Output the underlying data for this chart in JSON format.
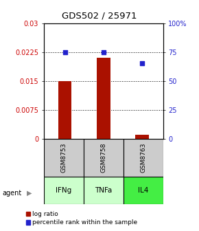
{
  "title": "GDS502 / 25971",
  "samples": [
    "GSM8753",
    "GSM8758",
    "GSM8763"
  ],
  "agents": [
    "IFNg",
    "TNFa",
    "IL4"
  ],
  "log_ratios": [
    0.015,
    0.021,
    0.001
  ],
  "percentile_ranks": [
    75,
    75,
    65
  ],
  "ylim_left": [
    0,
    0.03
  ],
  "ylim_right": [
    0,
    100
  ],
  "yticks_left": [
    0,
    0.0075,
    0.015,
    0.0225,
    0.03
  ],
  "ytick_labels_left": [
    "0",
    "0.0075",
    "0.015",
    "0.0225",
    "0.03"
  ],
  "yticks_right": [
    0,
    25,
    50,
    75,
    100
  ],
  "ytick_labels_right": [
    "0",
    "25",
    "50",
    "75",
    "100%"
  ],
  "bar_color": "#aa1100",
  "dot_color": "#2222cc",
  "agent_colors": [
    "#ccffcc",
    "#ccffcc",
    "#44ee44"
  ],
  "sample_box_color": "#cccccc",
  "bar_width": 0.35,
  "title_fontsize": 9.5
}
